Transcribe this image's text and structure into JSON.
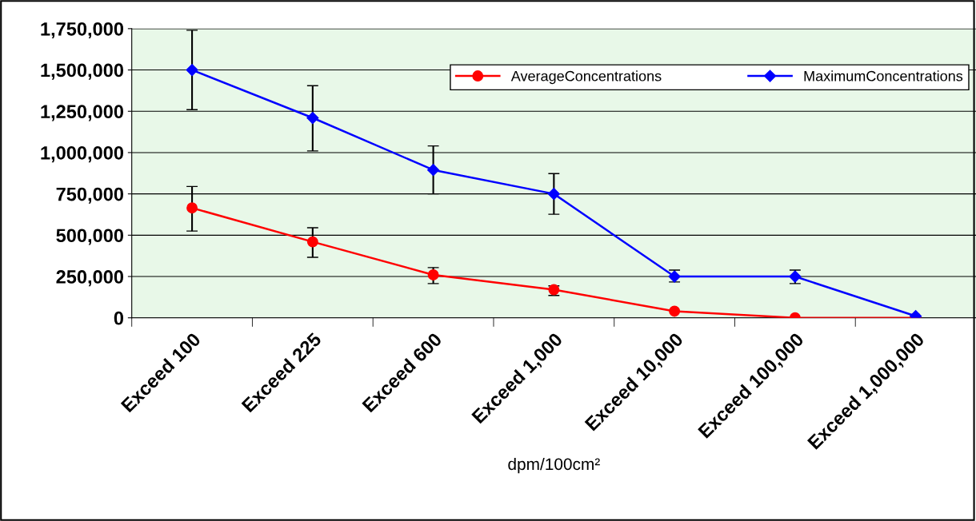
{
  "chart_data": {
    "type": "line",
    "xlabel": "dpm/100cm²",
    "categories": [
      "Exceed 100",
      "Exceed 225",
      "Exceed 600",
      "Exceed 1,000",
      "Exceed 10,000",
      "Exceed 100,000",
      "Exceed 1,000,000"
    ],
    "series": [
      {
        "name": "AverageConcentrations",
        "color": "#ff0000",
        "marker": "circle",
        "values": [
          665000,
          460000,
          260000,
          170000,
          40000,
          0,
          0
        ],
        "errors": [
          [
            525000,
            795000
          ],
          [
            366000,
            545000
          ],
          [
            207000,
            304000
          ],
          [
            135000,
            193000
          ],
          null,
          null,
          null
        ]
      },
      {
        "name": "MaximumConcentrations",
        "color": "#0000ff",
        "marker": "diamond",
        "values": [
          1500000,
          1210000,
          895000,
          750000,
          250000,
          250000,
          10000
        ],
        "errors": [
          [
            1260000,
            1740000
          ],
          [
            1010000,
            1405000
          ],
          [
            750000,
            1040000
          ],
          [
            627000,
            873000
          ],
          [
            217000,
            289000
          ],
          [
            207000,
            289000
          ],
          null
        ]
      }
    ],
    "ylim": [
      0,
      1750000
    ],
    "yticks": [
      {
        "value": 0,
        "label": "0"
      },
      {
        "value": 250000,
        "label": "250,000"
      },
      {
        "value": 500000,
        "label": "500,000"
      },
      {
        "value": 750000,
        "label": "750,000"
      },
      {
        "value": 1000000,
        "label": "1,000,000"
      },
      {
        "value": 1250000,
        "label": "1,250,000"
      },
      {
        "value": 1500000,
        "label": "1,500,000"
      },
      {
        "value": 1750000,
        "label": "1,750,000"
      }
    ],
    "grid": "y",
    "legend": "top right",
    "line_style": "solid"
  }
}
